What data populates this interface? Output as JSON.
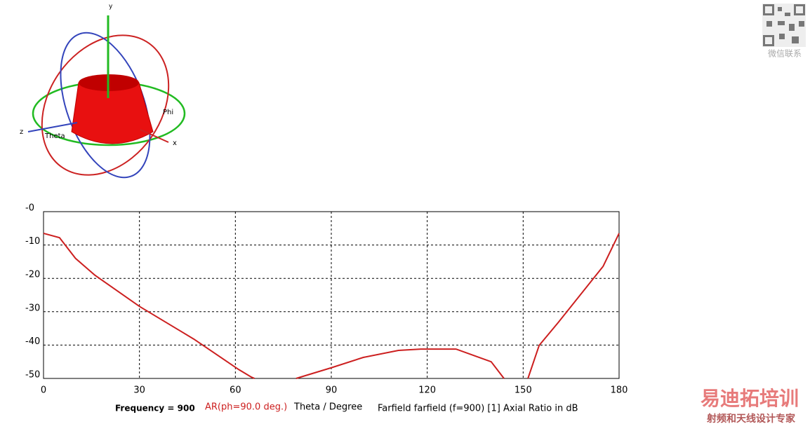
{
  "chart_data": {
    "type": "line",
    "title": "Farfield farfield (f=900) [1] Axial Ratio in dB",
    "annotation": "Frequency = 900",
    "xlabel": "Theta / Degree",
    "x": [
      0,
      5,
      10,
      16,
      30,
      47,
      61,
      65,
      66,
      null,
      79,
      90,
      100,
      111,
      118,
      129,
      140,
      144,
      null,
      151.5,
      155,
      161,
      175,
      180
    ],
    "series": [
      {
        "name": "AR(ph=90.0 deg.)",
        "color": "#cc1f1f",
        "values": [
          -6.5,
          -7.8,
          -14,
          -19,
          -28.4,
          -38.2,
          -47.3,
          -49.6,
          -50,
          null,
          -50,
          -46.8,
          -43.7,
          -41.6,
          -41.2,
          -41.2,
          -45,
          -50,
          null,
          -50,
          -40.1,
          -33.2,
          -16.4,
          -6.5
        ]
      }
    ],
    "xlim": [
      0,
      180
    ],
    "xticks": [
      0,
      30,
      60,
      90,
      120,
      150,
      180
    ],
    "ylim": [
      -50,
      0
    ],
    "yticks": [
      {
        "value": 0,
        "label": "-0"
      },
      -10,
      -20,
      -30,
      -40,
      -50
    ],
    "grid": true
  },
  "image_labels": {
    "y": "y",
    "z": "z",
    "x": "x",
    "theta": "Theta",
    "phi": "Phi"
  },
  "watermark": {
    "contact": "微信联系",
    "brand": "易迪拓培训",
    "slogan": "射频和天线设计专家"
  }
}
